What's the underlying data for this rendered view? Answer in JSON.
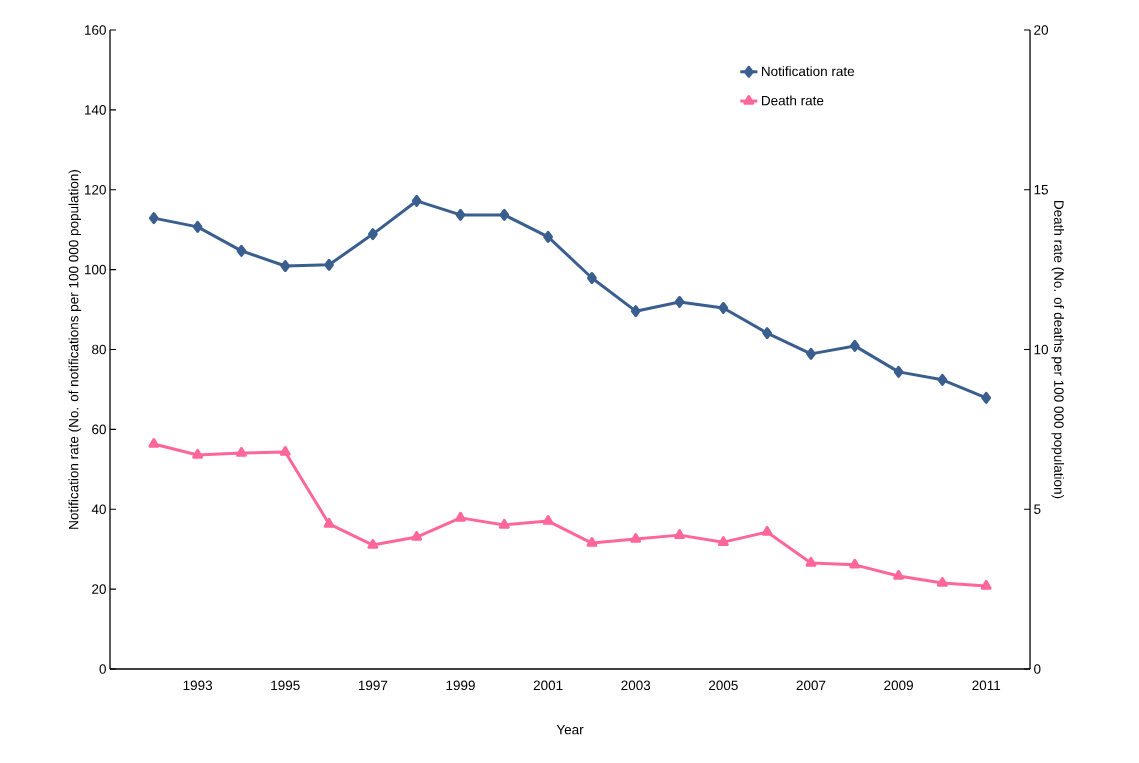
{
  "chart_data": {
    "type": "line",
    "xlabel": "Year",
    "ylabel": "Notification rate (No. of notifications per 100 000 population)",
    "y2label": "Death rate (No. of deaths per 100 000 population)",
    "categories": [
      null,
      "1993",
      null,
      "1995",
      null,
      "1997",
      null,
      "1999",
      null,
      "2001",
      null,
      "2003",
      null,
      "2005",
      null,
      "2007",
      null,
      "2009",
      null,
      "2011"
    ],
    "series": [
      {
        "name": "Notification rate",
        "color": "#3a5f8f",
        "marker": "diamond",
        "values": [
          112.9,
          110.7,
          104.7,
          100.9,
          101.2,
          108.9,
          117.2,
          113.7,
          113.7,
          108.2,
          97.9,
          89.6,
          91.9,
          90.4,
          84.1,
          78.9,
          80.9,
          74.4,
          72.4,
          67.9
        ]
      },
      {
        "name": "Death rate",
        "color": "#ff6699",
        "marker": "triangle",
        "axis": "y2",
        "values": [
          7.04,
          6.7,
          6.76,
          6.79,
          4.54,
          3.88,
          4.13,
          4.73,
          4.51,
          4.63,
          3.94,
          4.07,
          4.19,
          3.97,
          4.29,
          3.32,
          3.26,
          2.91,
          2.69,
          2.6
        ]
      }
    ],
    "ylim": [
      0,
      160
    ],
    "yticks": [
      0,
      20,
      40,
      60,
      80,
      100,
      120,
      140,
      160
    ],
    "y2lim": [
      0,
      20
    ],
    "y2ticks": [
      0,
      5,
      10,
      15,
      20
    ],
    "legend": "top right",
    "grid": false,
    "line_style": "solid"
  }
}
